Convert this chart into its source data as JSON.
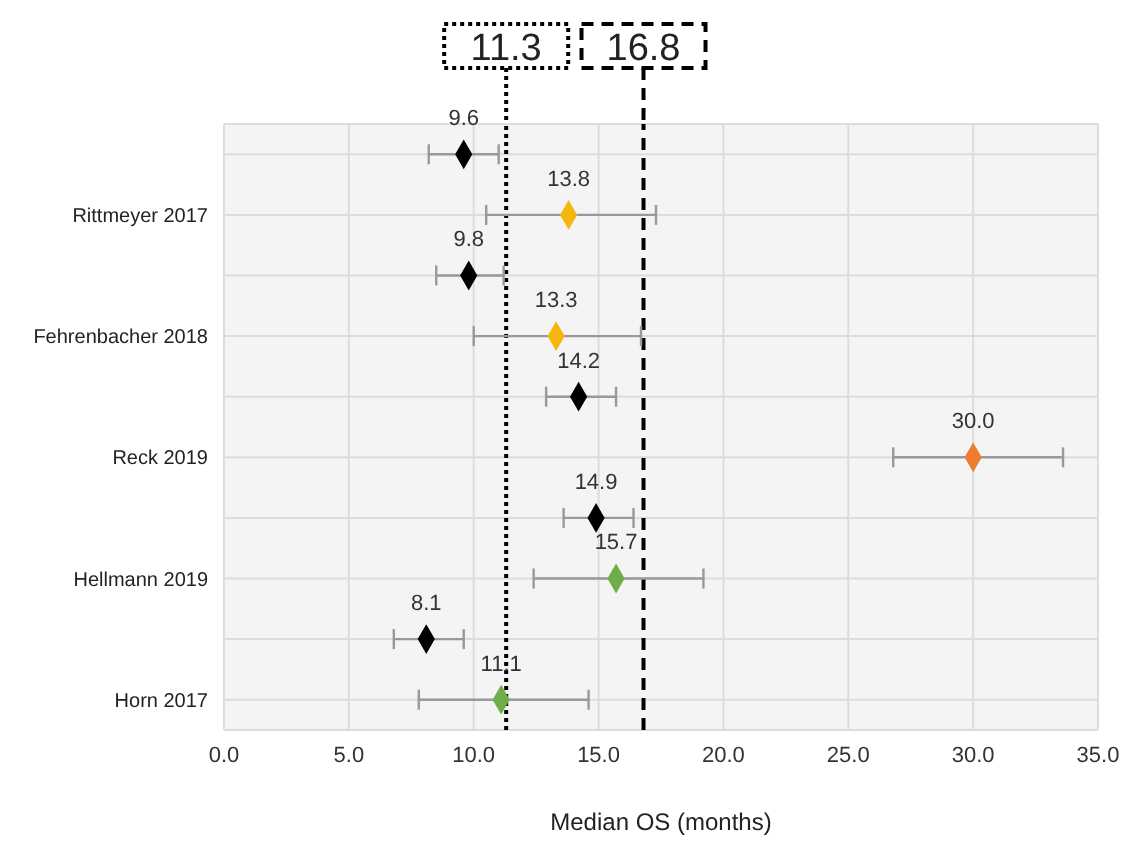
{
  "chart_data": {
    "type": "scatter",
    "orientation": "horizontal",
    "xlabel": "Median OS (months)",
    "categories": [
      null,
      "Rittmeyer 2017",
      null,
      "Fehrenbacher 2018",
      null,
      "Reck 2019",
      null,
      "Hellmann 2019",
      null,
      "Horn 2017"
    ],
    "series": [
      {
        "color": "#000000",
        "values": [
          9.6,
          null,
          9.8,
          null,
          14.2,
          null,
          14.9,
          null,
          8.1,
          null
        ],
        "errors": [
          [
            8.2,
            11.0
          ],
          null,
          [
            8.5,
            11.2
          ],
          null,
          [
            12.9,
            15.7
          ],
          null,
          [
            13.6,
            16.4
          ],
          null,
          [
            6.8,
            9.6
          ],
          null
        ],
        "value_labels": [
          "9.6",
          null,
          "9.8",
          null,
          "14.2",
          null,
          "14.9",
          null,
          "8.1",
          null
        ]
      },
      {
        "colors": [
          null,
          "#f5b70f",
          null,
          "#f5b70f",
          null,
          "#ed7d31",
          null,
          "#70ad47",
          null,
          "#70ad47"
        ],
        "values": [
          null,
          13.8,
          null,
          13.3,
          null,
          30.0,
          null,
          15.7,
          null,
          11.1
        ],
        "errors": [
          null,
          [
            10.5,
            17.3
          ],
          null,
          [
            10.0,
            16.7
          ],
          null,
          [
            26.8,
            33.6
          ],
          null,
          [
            12.4,
            19.2
          ],
          null,
          [
            7.8,
            14.6
          ]
        ],
        "value_labels": [
          null,
          "13.8",
          null,
          "13.3",
          null,
          "30.0",
          null,
          "15.7",
          null,
          "11.1"
        ]
      }
    ],
    "xlim": [
      0,
      35
    ],
    "xticks": [
      {
        "value": 0,
        "label": "0.0"
      },
      {
        "value": 5,
        "label": "5.0"
      },
      {
        "value": 10,
        "label": "10.0"
      },
      {
        "value": 15,
        "label": "15.0"
      },
      {
        "value": 20,
        "label": "20.0"
      },
      {
        "value": 25,
        "label": "25.0"
      },
      {
        "value": 30,
        "label": "30.0"
      },
      {
        "value": 35,
        "label": "35.0"
      }
    ],
    "ref_lines": [
      {
        "axis": "x",
        "value": 11.3,
        "label": "11.3",
        "line_style": "dotted"
      },
      {
        "axis": "x",
        "value": 16.8,
        "label": "16.8",
        "line_style": "dashed"
      }
    ],
    "marker": "diamond",
    "grid": true
  }
}
